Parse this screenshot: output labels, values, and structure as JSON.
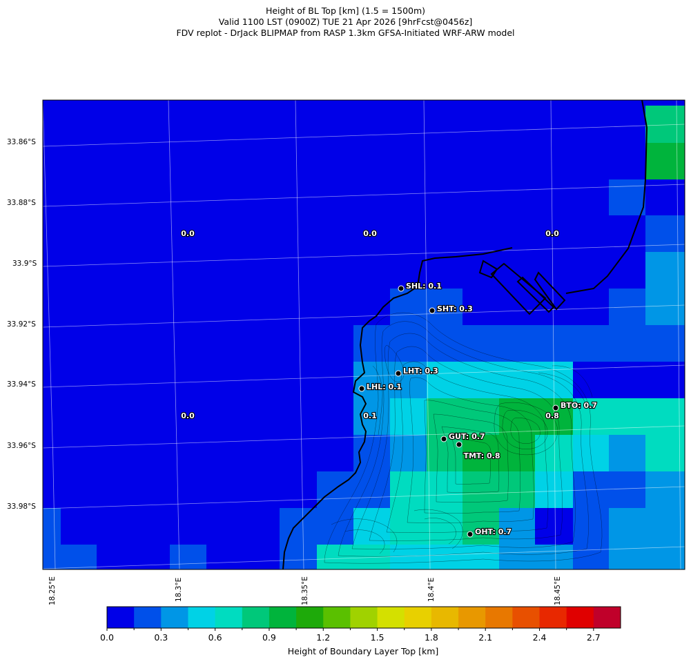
{
  "title": {
    "line1": "Height of BL Top [km] (1.5 = 1500m)",
    "line2": "Valid 1100 LST (0900Z) TUE 21 Apr 2026 [9hrFcst@0456z]",
    "line3": "FDV replot - DrJack BLIPMAP from RASP 1.3km GFSA-Initiated WRF-ARW model"
  },
  "axes": {
    "lat_labels": [
      "33.86°S",
      "33.88°S",
      "33.9°S",
      "33.92°S",
      "33.94°S",
      "33.96°S",
      "33.98°S"
    ],
    "lon_labels": [
      "18.25°E",
      "18.3°E",
      "18.35°E",
      "18.4°E",
      "18.45°E"
    ]
  },
  "grid_values": [
    {
      "id": "v1",
      "text": "0.0"
    },
    {
      "id": "v2",
      "text": "0.0"
    },
    {
      "id": "v3",
      "text": "0.0"
    },
    {
      "id": "v4",
      "text": "0.0"
    },
    {
      "id": "v5",
      "text": "0.1"
    },
    {
      "id": "v6",
      "text": "0.8"
    },
    {
      "id": "v7",
      "text": "TMT: 0.8"
    }
  ],
  "stations": [
    {
      "id": "shl",
      "label": "SHL: 0.1"
    },
    {
      "id": "sht",
      "label": "SHT: 0.3"
    },
    {
      "id": "lht",
      "label": "LHT: 0.3"
    },
    {
      "id": "lhl",
      "label": "LHL: 0.1"
    },
    {
      "id": "bto",
      "label": "BTO: 0.7"
    },
    {
      "id": "gut",
      "label": "GUT: 0.7"
    },
    {
      "id": "oht",
      "label": "OHT: 0.7"
    }
  ],
  "colorbar": {
    "label": "Height of Boundary Layer Top [km]",
    "tick_labels": [
      "0.0",
      "0.3",
      "0.6",
      "0.9",
      "1.2",
      "1.5",
      "1.8",
      "2.1",
      "2.4",
      "2.7"
    ],
    "colors": [
      "#0000e8",
      "#0050ea",
      "#0096e6",
      "#00d2e6",
      "#00dcc0",
      "#00c87a",
      "#00b43c",
      "#1eaa0a",
      "#5ac000",
      "#a0d200",
      "#d4e000",
      "#e8d000",
      "#e8b800",
      "#e89800",
      "#e87800",
      "#e85000",
      "#e82800",
      "#e00000",
      "#c0002a"
    ]
  }
}
